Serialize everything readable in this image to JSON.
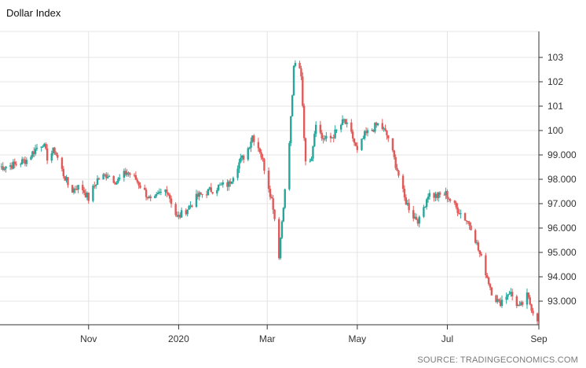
{
  "chart_data": {
    "type": "candlestick",
    "title": "Dollar Index",
    "source": "SOURCE: TRADINGECONOMICS.COM",
    "xlabel": "",
    "ylabel": "",
    "ylim": [
      92.0,
      104.0
    ],
    "y_ticks": [
      {
        "value": 103,
        "label": "103"
      },
      {
        "value": 102,
        "label": "102"
      },
      {
        "value": 101,
        "label": "101"
      },
      {
        "value": 100,
        "label": "100"
      },
      {
        "value": 99,
        "label": "99.000"
      },
      {
        "value": 98,
        "label": "98.000"
      },
      {
        "value": 97,
        "label": "97.000"
      },
      {
        "value": 96,
        "label": "96.000"
      },
      {
        "value": 95,
        "label": "95.000"
      },
      {
        "value": 94,
        "label": "94.000"
      },
      {
        "value": 93,
        "label": "93.000"
      }
    ],
    "x_ticks": [
      {
        "date": "2019-11-01",
        "label": "Nov"
      },
      {
        "date": "2020-01-01",
        "label": "2020"
      },
      {
        "date": "2020-03-01",
        "label": "Mar"
      },
      {
        "date": "2020-05-01",
        "label": "May"
      },
      {
        "date": "2020-07-01",
        "label": "Jul"
      },
      {
        "date": "2020-09-01",
        "label": "Sep"
      }
    ],
    "x_range": [
      "2019-09-02",
      "2020-09-01"
    ],
    "grid": true,
    "up_color": "#26a69a",
    "down_color": "#e05a5a",
    "close_path": [
      [
        "2019-09-02",
        98.5
      ],
      [
        "2019-09-12",
        98.6
      ],
      [
        "2019-09-20",
        98.8
      ],
      [
        "2019-09-27",
        99.3
      ],
      [
        "2019-10-01",
        99.5
      ],
      [
        "2019-10-04",
        98.9
      ],
      [
        "2019-10-09",
        99.2
      ],
      [
        "2019-10-15",
        98.2
      ],
      [
        "2019-10-20",
        97.5
      ],
      [
        "2019-10-24",
        97.7
      ],
      [
        "2019-10-28",
        97.6
      ],
      [
        "2019-11-01",
        97.2
      ],
      [
        "2019-11-07",
        98.0
      ],
      [
        "2019-11-14",
        98.2
      ],
      [
        "2019-11-20",
        97.9
      ],
      [
        "2019-11-27",
        98.3
      ],
      [
        "2019-12-03",
        98.0
      ],
      [
        "2019-12-10",
        97.4
      ],
      [
        "2019-12-14",
        97.0
      ],
      [
        "2019-12-19",
        97.4
      ],
      [
        "2019-12-24",
        97.6
      ],
      [
        "2019-12-31",
        96.4
      ],
      [
        "2020-01-07",
        96.8
      ],
      [
        "2020-01-14",
        97.3
      ],
      [
        "2020-01-21",
        97.5
      ],
      [
        "2020-01-28",
        97.7
      ],
      [
        "2020-02-04",
        97.8
      ],
      [
        "2020-02-10",
        98.6
      ],
      [
        "2020-02-16",
        99.1
      ],
      [
        "2020-02-20",
        99.8
      ],
      [
        "2020-02-25",
        99.2
      ],
      [
        "2020-03-01",
        98.0
      ],
      [
        "2020-03-05",
        96.9
      ],
      [
        "2020-03-09",
        94.9
      ],
      [
        "2020-03-12",
        97.0
      ],
      [
        "2020-03-15",
        98.5
      ],
      [
        "2020-03-17",
        100.5
      ],
      [
        "2020-03-19",
        102.5
      ],
      [
        "2020-03-21",
        102.9
      ],
      [
        "2020-03-24",
        102.3
      ],
      [
        "2020-03-27",
        98.6
      ],
      [
        "2020-03-31",
        99.0
      ],
      [
        "2020-04-03",
        100.4
      ],
      [
        "2020-04-07",
        99.7
      ],
      [
        "2020-04-12",
        99.6
      ],
      [
        "2020-04-16",
        99.9
      ],
      [
        "2020-04-22",
        100.4
      ],
      [
        "2020-04-28",
        99.7
      ],
      [
        "2020-05-01",
        99.1
      ],
      [
        "2020-05-06",
        99.8
      ],
      [
        "2020-05-12",
        100.1
      ],
      [
        "2020-05-16",
        100.3
      ],
      [
        "2020-05-22",
        99.7
      ],
      [
        "2020-05-28",
        98.4
      ],
      [
        "2020-06-02",
        97.2
      ],
      [
        "2020-06-08",
        96.5
      ],
      [
        "2020-06-12",
        96.3
      ],
      [
        "2020-06-18",
        97.4
      ],
      [
        "2020-06-24",
        97.3
      ],
      [
        "2020-06-30",
        97.4
      ],
      [
        "2020-07-06",
        96.9
      ],
      [
        "2020-07-13",
        96.4
      ],
      [
        "2020-07-18",
        96.0
      ],
      [
        "2020-07-22",
        95.1
      ],
      [
        "2020-07-27",
        94.2
      ],
      [
        "2020-07-31",
        93.4
      ],
      [
        "2020-08-05",
        92.9
      ],
      [
        "2020-08-12",
        93.4
      ],
      [
        "2020-08-19",
        92.7
      ],
      [
        "2020-08-24",
        93.2
      ],
      [
        "2020-08-28",
        92.6
      ],
      [
        "2020-08-31",
        92.3
      ]
    ]
  }
}
